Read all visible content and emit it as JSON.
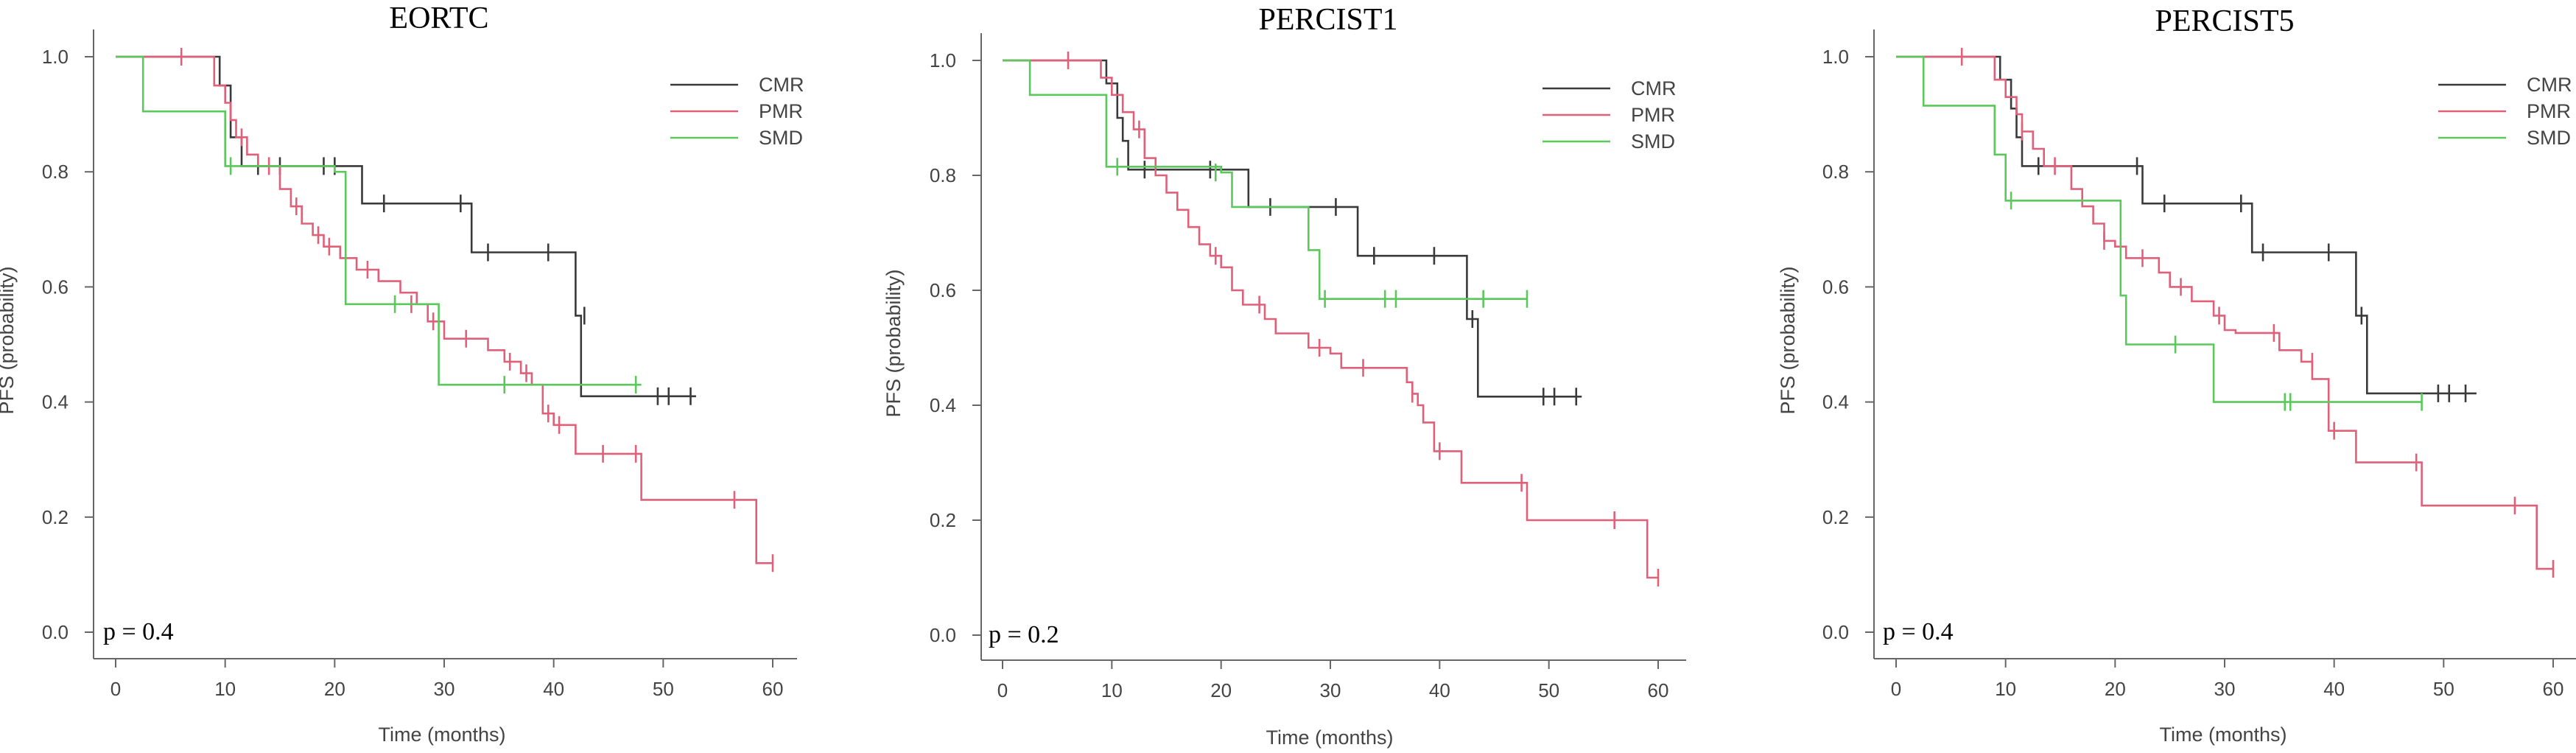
{
  "chart_data": [
    {
      "type": "line",
      "title": "EORTC",
      "xlabel": "Time (months)",
      "ylabel": "PFS (probability)",
      "xlim": [
        0,
        62
      ],
      "ylim": [
        0,
        1
      ],
      "xticks": [
        "0",
        "10",
        "20",
        "30",
        "40",
        "50",
        "60"
      ],
      "yticks": [
        "0.0",
        "0.2",
        "0.4",
        "0.6",
        "0.8",
        "1.0"
      ],
      "p_value": "p = 0.4",
      "legend_position": "top-right",
      "series": [
        {
          "name": "CMR",
          "color": "#3a3a3a",
          "steps": [
            [
              0,
              1.0
            ],
            [
              9.5,
              0.95
            ],
            [
              10.5,
              0.86
            ],
            [
              11.5,
              0.81
            ],
            [
              22.5,
              0.745
            ],
            [
              32.5,
              0.66
            ],
            [
              42,
              0.55
            ],
            [
              42.5,
              0.41
            ],
            [
              53,
              0.41
            ]
          ],
          "censors": [
            [
              13,
              0.81
            ],
            [
              15,
              0.81
            ],
            [
              19,
              0.81
            ],
            [
              20,
              0.81
            ],
            [
              24.5,
              0.745
            ],
            [
              31.5,
              0.745
            ],
            [
              34,
              0.66
            ],
            [
              39.5,
              0.66
            ],
            [
              42.8,
              0.55
            ],
            [
              49.5,
              0.41
            ],
            [
              50.5,
              0.41
            ],
            [
              52.5,
              0.41
            ]
          ]
        },
        {
          "name": "PMR",
          "color": "#e0607a",
          "steps": [
            [
              0,
              1.0
            ],
            [
              9,
              0.95
            ],
            [
              10,
              0.92
            ],
            [
              10.5,
              0.89
            ],
            [
              11,
              0.86
            ],
            [
              12,
              0.83
            ],
            [
              13,
              0.81
            ],
            [
              15,
              0.77
            ],
            [
              16,
              0.74
            ],
            [
              17,
              0.71
            ],
            [
              18,
              0.69
            ],
            [
              19,
              0.67
            ],
            [
              20.5,
              0.65
            ],
            [
              22,
              0.63
            ],
            [
              24,
              0.61
            ],
            [
              26,
              0.59
            ],
            [
              27.5,
              0.57
            ],
            [
              28.5,
              0.54
            ],
            [
              30,
              0.51
            ],
            [
              34,
              0.49
            ],
            [
              35.5,
              0.47
            ],
            [
              37,
              0.45
            ],
            [
              38,
              0.43
            ],
            [
              39,
              0.38
            ],
            [
              40,
              0.36
            ],
            [
              42,
              0.31
            ],
            [
              48,
              0.23
            ],
            [
              58.5,
              0.12
            ],
            [
              60,
              0.12
            ]
          ],
          "censors": [
            [
              6,
              1.0
            ],
            [
              11.5,
              0.86
            ],
            [
              14,
              0.81
            ],
            [
              16.5,
              0.74
            ],
            [
              18.5,
              0.69
            ],
            [
              19.5,
              0.67
            ],
            [
              23,
              0.63
            ],
            [
              27,
              0.57
            ],
            [
              29,
              0.54
            ],
            [
              32,
              0.51
            ],
            [
              36,
              0.47
            ],
            [
              37.5,
              0.45
            ],
            [
              39.5,
              0.38
            ],
            [
              40.5,
              0.36
            ],
            [
              44.5,
              0.31
            ],
            [
              47.5,
              0.31
            ],
            [
              56.5,
              0.23
            ],
            [
              60,
              0.12
            ]
          ]
        },
        {
          "name": "SMD",
          "color": "#5ac85a",
          "steps": [
            [
              0,
              1.0
            ],
            [
              2.5,
              0.905
            ],
            [
              10,
              0.81
            ],
            [
              20,
              0.8
            ],
            [
              21,
              0.57
            ],
            [
              29.5,
              0.43
            ],
            [
              48,
              0.43
            ]
          ],
          "censors": [
            [
              10.5,
              0.81
            ],
            [
              25.5,
              0.57
            ],
            [
              35.5,
              0.43
            ],
            [
              47.5,
              0.43
            ]
          ]
        }
      ]
    },
    {
      "type": "line",
      "title": "PERCIST1",
      "xlabel": "Time (months)",
      "ylabel": "PFS (probability)",
      "xlim": [
        0,
        62
      ],
      "ylim": [
        0,
        1
      ],
      "xticks": [
        "0",
        "10",
        "20",
        "30",
        "40",
        "50",
        "60"
      ],
      "yticks": [
        "0.0",
        "0.2",
        "0.4",
        "0.6",
        "0.8",
        "1.0"
      ],
      "p_value": "p = 0.2",
      "legend_position": "top-right",
      "series": [
        {
          "name": "CMR",
          "color": "#3a3a3a",
          "steps": [
            [
              0,
              1.0
            ],
            [
              9.5,
              0.96
            ],
            [
              10.5,
              0.9
            ],
            [
              11,
              0.86
            ],
            [
              11.5,
              0.81
            ],
            [
              22.5,
              0.745
            ],
            [
              32.5,
              0.66
            ],
            [
              42.5,
              0.55
            ],
            [
              43.5,
              0.415
            ],
            [
              53,
              0.415
            ]
          ],
          "censors": [
            [
              13,
              0.81
            ],
            [
              19,
              0.81
            ],
            [
              24.5,
              0.745
            ],
            [
              30.5,
              0.745
            ],
            [
              34,
              0.66
            ],
            [
              39.5,
              0.66
            ],
            [
              43,
              0.55
            ],
            [
              49.5,
              0.415
            ],
            [
              50.5,
              0.415
            ],
            [
              52.5,
              0.415
            ]
          ]
        },
        {
          "name": "PMR",
          "color": "#e0607a",
          "steps": [
            [
              0,
              1.0
            ],
            [
              9,
              0.97
            ],
            [
              10,
              0.94
            ],
            [
              11,
              0.91
            ],
            [
              12,
              0.88
            ],
            [
              13,
              0.83
            ],
            [
              14,
              0.8
            ],
            [
              15,
              0.77
            ],
            [
              16,
              0.74
            ],
            [
              17,
              0.71
            ],
            [
              18,
              0.68
            ],
            [
              19,
              0.66
            ],
            [
              20,
              0.64
            ],
            [
              21,
              0.6
            ],
            [
              22,
              0.575
            ],
            [
              24,
              0.55
            ],
            [
              25,
              0.525
            ],
            [
              28,
              0.5
            ],
            [
              30,
              0.49
            ],
            [
              31,
              0.465
            ],
            [
              37,
              0.44
            ],
            [
              37.5,
              0.42
            ],
            [
              38,
              0.4
            ],
            [
              38.5,
              0.37
            ],
            [
              39.5,
              0.32
            ],
            [
              42,
              0.265
            ],
            [
              48,
              0.2
            ],
            [
              59,
              0.1
            ],
            [
              60,
              0.1
            ]
          ],
          "censors": [
            [
              6,
              1.0
            ],
            [
              12.5,
              0.88
            ],
            [
              19.5,
              0.66
            ],
            [
              23.5,
              0.575
            ],
            [
              29,
              0.5
            ],
            [
              33,
              0.465
            ],
            [
              37.5,
              0.42
            ],
            [
              40,
              0.32
            ],
            [
              47.5,
              0.265
            ],
            [
              56,
              0.2
            ],
            [
              60,
              0.1
            ]
          ]
        },
        {
          "name": "SMD",
          "color": "#5ac85a",
          "steps": [
            [
              0,
              1.0
            ],
            [
              2.5,
              0.94
            ],
            [
              9.5,
              0.815
            ],
            [
              20,
              0.805
            ],
            [
              21,
              0.745
            ],
            [
              28,
              0.67
            ],
            [
              29,
              0.585
            ],
            [
              48,
              0.585
            ]
          ],
          "censors": [
            [
              10.5,
              0.815
            ],
            [
              19.5,
              0.805
            ],
            [
              29.5,
              0.585
            ],
            [
              35,
              0.585
            ],
            [
              36,
              0.585
            ],
            [
              44,
              0.585
            ],
            [
              48,
              0.585
            ]
          ]
        }
      ]
    },
    {
      "type": "line",
      "title": "PERCIST5",
      "xlabel": "Time (months)",
      "ylabel": "PFS (probability)",
      "xlim": [
        0,
        62
      ],
      "ylim": [
        0,
        1
      ],
      "xticks": [
        "0",
        "10",
        "20",
        "30",
        "40",
        "50",
        "60"
      ],
      "yticks": [
        "0.0",
        "0.2",
        "0.4",
        "0.6",
        "0.8",
        "1.0"
      ],
      "p_value": "p = 0.4",
      "legend_position": "top-right",
      "series": [
        {
          "name": "CMR",
          "color": "#3a3a3a",
          "steps": [
            [
              0,
              1.0
            ],
            [
              9.5,
              0.96
            ],
            [
              10.5,
              0.91
            ],
            [
              11,
              0.86
            ],
            [
              11.5,
              0.81
            ],
            [
              22.5,
              0.745
            ],
            [
              32.5,
              0.66
            ],
            [
              42,
              0.55
            ],
            [
              43,
              0.415
            ],
            [
              53,
              0.415
            ]
          ],
          "censors": [
            [
              13,
              0.81
            ],
            [
              22,
              0.81
            ],
            [
              24.5,
              0.745
            ],
            [
              31.5,
              0.745
            ],
            [
              33.5,
              0.66
            ],
            [
              39.5,
              0.66
            ],
            [
              42.5,
              0.55
            ],
            [
              49.5,
              0.415
            ],
            [
              50.5,
              0.415
            ],
            [
              52,
              0.415
            ]
          ]
        },
        {
          "name": "PMR",
          "color": "#e0607a",
          "steps": [
            [
              0,
              1.0
            ],
            [
              9,
              0.96
            ],
            [
              10,
              0.93
            ],
            [
              11,
              0.9
            ],
            [
              11.5,
              0.87
            ],
            [
              12.5,
              0.84
            ],
            [
              13.5,
              0.81
            ],
            [
              16,
              0.77
            ],
            [
              17,
              0.74
            ],
            [
              18,
              0.71
            ],
            [
              19,
              0.68
            ],
            [
              20,
              0.67
            ],
            [
              21,
              0.65
            ],
            [
              24,
              0.625
            ],
            [
              25,
              0.6
            ],
            [
              27,
              0.575
            ],
            [
              29,
              0.55
            ],
            [
              30,
              0.525
            ],
            [
              31,
              0.52
            ],
            [
              35,
              0.49
            ],
            [
              37,
              0.47
            ],
            [
              38,
              0.44
            ],
            [
              39.5,
              0.35
            ],
            [
              42,
              0.295
            ],
            [
              48,
              0.22
            ],
            [
              58.5,
              0.11
            ],
            [
              60,
              0.11
            ]
          ],
          "censors": [
            [
              6,
              1.0
            ],
            [
              11.5,
              0.87
            ],
            [
              14.5,
              0.81
            ],
            [
              19,
              0.68
            ],
            [
              22.5,
              0.65
            ],
            [
              26,
              0.6
            ],
            [
              29.5,
              0.55
            ],
            [
              34.5,
              0.52
            ],
            [
              38,
              0.47
            ],
            [
              40,
              0.35
            ],
            [
              47.5,
              0.295
            ],
            [
              56.5,
              0.22
            ],
            [
              60,
              0.11
            ]
          ]
        },
        {
          "name": "SMD",
          "color": "#5ac85a",
          "steps": [
            [
              0,
              1.0
            ],
            [
              2.5,
              0.915
            ],
            [
              9,
              0.83
            ],
            [
              10,
              0.75
            ],
            [
              20,
              0.75
            ],
            [
              20.5,
              0.585
            ],
            [
              21,
              0.5
            ],
            [
              29,
              0.4
            ],
            [
              48,
              0.4
            ]
          ],
          "censors": [
            [
              10.5,
              0.75
            ],
            [
              25.5,
              0.5
            ],
            [
              35.5,
              0.4
            ],
            [
              36,
              0.4
            ],
            [
              48,
              0.4
            ]
          ]
        }
      ]
    }
  ]
}
